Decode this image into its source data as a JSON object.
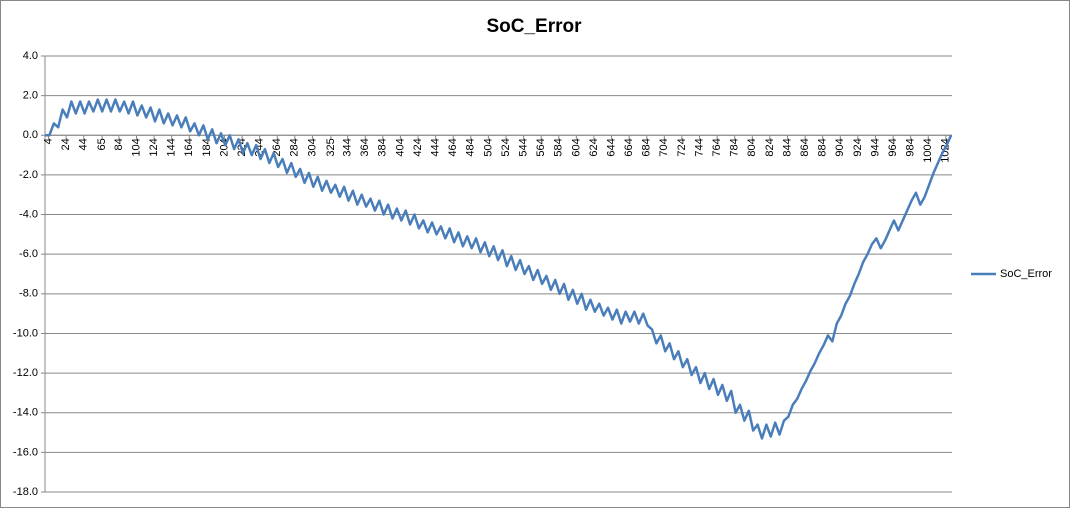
{
  "chart_data": {
    "type": "line",
    "title": "SoC_Error",
    "x": [
      0,
      5,
      10,
      15,
      20,
      25,
      30,
      35,
      40,
      45,
      50,
      55,
      60,
      65,
      70,
      75,
      80,
      85,
      90,
      95,
      100,
      105,
      110,
      115,
      120,
      125,
      130,
      135,
      140,
      145,
      150,
      155,
      160,
      165,
      170,
      175,
      180,
      185,
      190,
      195,
      200,
      205,
      210,
      215,
      220,
      225,
      230,
      235,
      240,
      245,
      250,
      255,
      260,
      265,
      270,
      275,
      280,
      285,
      290,
      295,
      300,
      305,
      310,
      315,
      320,
      325,
      330,
      335,
      340,
      345,
      350,
      355,
      360,
      365,
      370,
      375,
      380,
      385,
      390,
      395,
      400,
      405,
      410,
      415,
      420,
      425,
      430,
      435,
      440,
      445,
      450,
      455,
      460,
      465,
      470,
      475,
      480,
      485,
      490,
      495,
      500,
      505,
      510,
      515,
      520,
      525,
      530,
      535,
      540,
      545,
      550,
      555,
      560,
      565,
      570,
      575,
      580,
      585,
      590,
      595,
      600,
      605,
      610,
      615,
      620,
      625,
      630,
      635,
      640,
      645,
      650,
      655,
      660,
      665,
      670,
      675,
      680,
      685,
      690,
      695,
      700,
      705,
      710,
      715,
      720,
      725,
      730,
      735,
      740,
      745,
      750,
      755,
      760,
      765,
      770,
      775,
      780,
      785,
      790,
      795,
      800,
      805,
      810,
      815,
      820,
      825,
      830,
      835,
      840,
      845,
      850,
      855,
      860,
      865,
      870,
      875,
      880,
      885,
      890,
      895,
      900,
      905,
      910,
      915,
      920,
      925,
      930,
      935,
      940,
      945,
      950,
      955,
      960,
      965,
      970,
      975,
      980,
      985,
      990,
      995,
      1000,
      1005,
      1010,
      1015,
      1020,
      1025,
      1030
    ],
    "series": [
      {
        "name": "SoC_Error",
        "color": "#4a7ebb",
        "values": [
          0,
          0,
          0.6,
          0.4,
          1.3,
          0.9,
          1.7,
          1.1,
          1.7,
          1.1,
          1.7,
          1.2,
          1.8,
          1.2,
          1.8,
          1.2,
          1.8,
          1.2,
          1.7,
          1.1,
          1.7,
          1.0,
          1.5,
          0.9,
          1.4,
          0.7,
          1.3,
          0.6,
          1.1,
          0.5,
          1.0,
          0.4,
          0.9,
          0.2,
          0.6,
          0.0,
          0.5,
          -0.2,
          0.3,
          -0.4,
          0.1,
          -0.5,
          0.0,
          -0.7,
          -0.2,
          -0.9,
          -0.4,
          -1.0,
          -0.5,
          -1.2,
          -0.7,
          -1.4,
          -0.9,
          -1.6,
          -1.2,
          -1.9,
          -1.4,
          -2.1,
          -1.7,
          -2.4,
          -1.9,
          -2.6,
          -2.1,
          -2.8,
          -2.3,
          -2.9,
          -2.5,
          -3.1,
          -2.6,
          -3.3,
          -2.8,
          -3.5,
          -3.0,
          -3.6,
          -3.2,
          -3.8,
          -3.3,
          -4.0,
          -3.5,
          -4.2,
          -3.7,
          -4.3,
          -3.8,
          -4.5,
          -4.0,
          -4.7,
          -4.3,
          -4.9,
          -4.4,
          -5.0,
          -4.6,
          -5.2,
          -4.7,
          -5.4,
          -4.9,
          -5.6,
          -5.1,
          -5.7,
          -5.2,
          -5.9,
          -5.4,
          -6.1,
          -5.6,
          -6.3,
          -5.8,
          -6.6,
          -6.1,
          -6.8,
          -6.3,
          -7.0,
          -6.6,
          -7.3,
          -6.8,
          -7.5,
          -7.1,
          -7.8,
          -7.3,
          -8.0,
          -7.5,
          -8.3,
          -7.8,
          -8.5,
          -8.0,
          -8.8,
          -8.3,
          -8.9,
          -8.5,
          -9.1,
          -8.7,
          -9.3,
          -8.8,
          -9.5,
          -8.9,
          -9.4,
          -8.9,
          -9.5,
          -9.0,
          -9.6,
          -9.8,
          -10.5,
          -10.1,
          -10.9,
          -10.5,
          -11.3,
          -10.9,
          -11.7,
          -11.3,
          -12.1,
          -11.7,
          -12.5,
          -12.0,
          -12.8,
          -12.3,
          -13.1,
          -12.6,
          -13.4,
          -12.9,
          -14.0,
          -13.6,
          -14.4,
          -13.9,
          -14.9,
          -14.6,
          -15.3,
          -14.6,
          -15.2,
          -14.5,
          -15.1,
          -14.4,
          -14.2,
          -13.6,
          -13.3,
          -12.8,
          -12.4,
          -11.9,
          -11.5,
          -11.0,
          -10.6,
          -10.1,
          -10.4,
          -9.5,
          -9.1,
          -8.5,
          -8.1,
          -7.5,
          -7.0,
          -6.4,
          -6.0,
          -5.5,
          -5.2,
          -5.7,
          -5.3,
          -4.8,
          -4.3,
          -4.8,
          -4.3,
          -3.8,
          -3.3,
          -2.9,
          -3.5,
          -3.1,
          -2.5,
          -1.9,
          -1.4,
          -0.9,
          -0.5,
          0.0
        ]
      }
    ],
    "xlim": [
      0,
      1031
    ],
    "xticks": [
      4,
      24,
      44,
      65,
      84,
      104,
      124,
      144,
      164,
      184,
      204,
      224,
      244,
      264,
      284,
      304,
      325,
      344,
      364,
      384,
      404,
      424,
      444,
      464,
      484,
      504,
      524,
      544,
      564,
      584,
      604,
      624,
      644,
      664,
      684,
      704,
      724,
      744,
      764,
      784,
      804,
      824,
      844,
      864,
      884,
      904,
      924,
      944,
      964,
      984,
      1004,
      1024
    ],
    "ylim": [
      -18,
      4
    ],
    "yticks": [
      {
        "value": -18,
        "label": "-18.0"
      },
      {
        "value": -16,
        "label": "-16.0"
      },
      {
        "value": -14,
        "label": "-14.0"
      },
      {
        "value": -12,
        "label": "-12.0"
      },
      {
        "value": -10,
        "label": "-10.0"
      },
      {
        "value": -8,
        "label": "-8.0"
      },
      {
        "value": -6,
        "label": "-6.0"
      },
      {
        "value": -4,
        "label": "-4.0"
      },
      {
        "value": -2,
        "label": "-2.0"
      },
      {
        "value": 0,
        "label": "0.0"
      },
      {
        "value": 2,
        "label": "2.0"
      },
      {
        "value": 4,
        "label": "4.0"
      }
    ],
    "grid": true,
    "legend": "right"
  }
}
